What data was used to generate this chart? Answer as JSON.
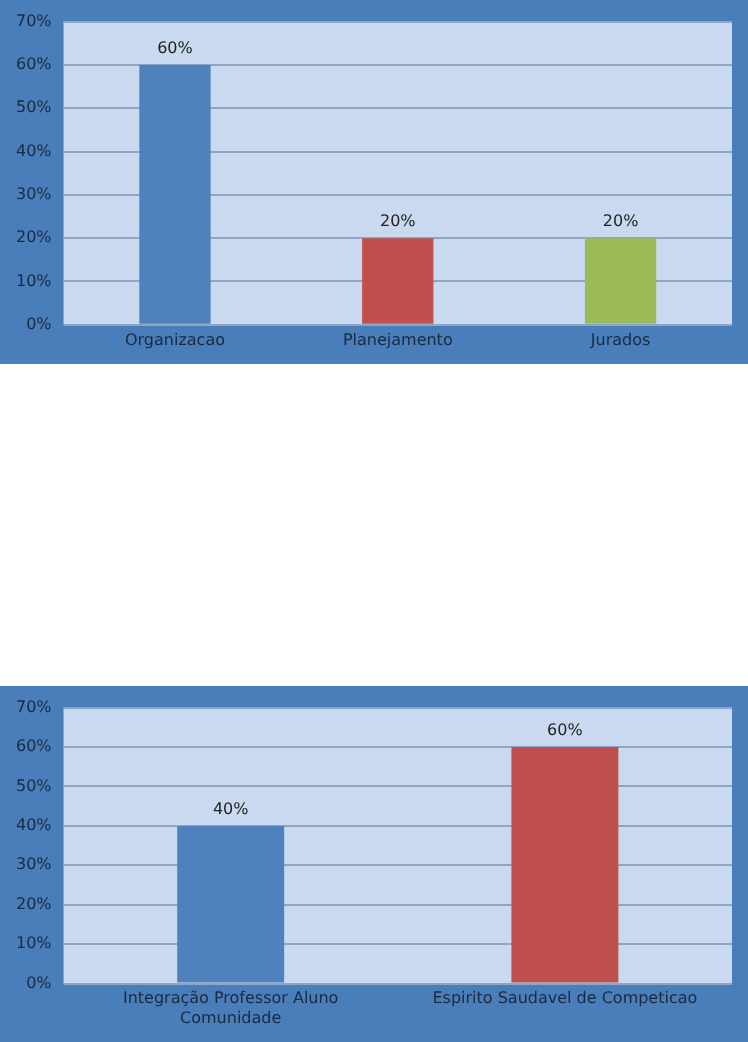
{
  "chart_data": [
    {
      "type": "bar",
      "categories": [
        "Organizacao",
        "Planejamento",
        "Jurados"
      ],
      "values": [
        60,
        20,
        20
      ],
      "colors": [
        "#4f81bd",
        "#c0504d",
        "#9bbb59"
      ],
      "value_labels": [
        "60%",
        "20%",
        "20%"
      ],
      "ylim": [
        0,
        70
      ],
      "yticks": [
        {
          "value": 0,
          "label": "0%"
        },
        {
          "value": 10,
          "label": "10%"
        },
        {
          "value": 20,
          "label": "20%"
        },
        {
          "value": 30,
          "label": "30%"
        },
        {
          "value": 40,
          "label": "40%"
        },
        {
          "value": 50,
          "label": "50%"
        },
        {
          "value": 60,
          "label": "60%"
        },
        {
          "value": 70,
          "label": "70%"
        }
      ],
      "grid": "y",
      "legend": false
    },
    {
      "type": "bar",
      "categories": [
        "Integração Professor Aluno Comunidade",
        "Espirito Saudavel de Competicao"
      ],
      "values": [
        40,
        60
      ],
      "colors": [
        "#4f81bd",
        "#c0504d"
      ],
      "value_labels": [
        "40%",
        "60%"
      ],
      "ylim": [
        0,
        70
      ],
      "yticks": [
        {
          "value": 0,
          "label": "0%"
        },
        {
          "value": 10,
          "label": "10%"
        },
        {
          "value": 20,
          "label": "20%"
        },
        {
          "value": 30,
          "label": "30%"
        },
        {
          "value": 40,
          "label": "40%"
        },
        {
          "value": 50,
          "label": "50%"
        },
        {
          "value": 60,
          "label": "60%"
        },
        {
          "value": 70,
          "label": "70%"
        }
      ],
      "grid": "y",
      "legend": false
    }
  ]
}
